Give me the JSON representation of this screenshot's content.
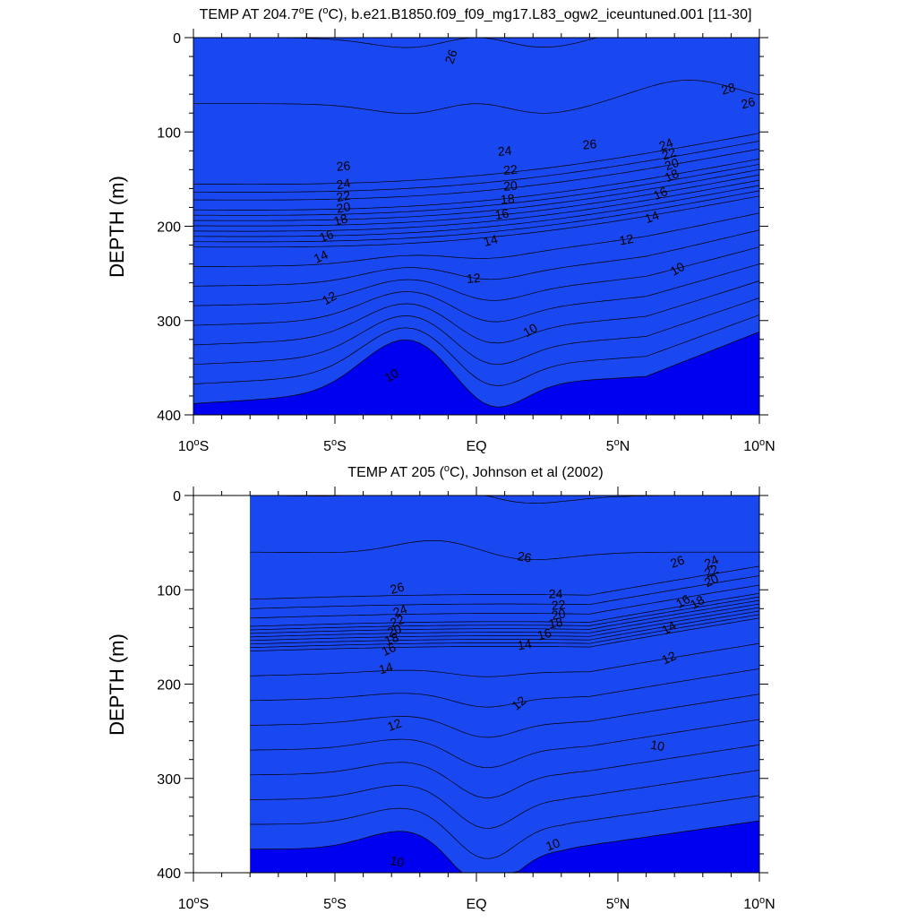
{
  "chart_data": [
    {
      "type": "contour",
      "title_prefix": "TEMP AT 204.7",
      "title_deg": "o",
      "title_mid": "E (",
      "title_unit_deg": "o",
      "title_suffix": "C), b.e21.B1850.f09_f09_mg17.L83_ogw2_iceuntuned.001 [11-30]",
      "ylabel": "DEPTH (m)",
      "xlim": [
        -10,
        10
      ],
      "ylim": [
        0,
        400
      ],
      "yticks": [
        0,
        100,
        200,
        300,
        400
      ],
      "xticks": [
        {
          "value": -10,
          "num": "10",
          "deg": "o",
          "hemi": "S"
        },
        {
          "value": -5,
          "num": "5",
          "deg": "o",
          "hemi": "S"
        },
        {
          "value": 0,
          "num": "EQ",
          "deg": "",
          "hemi": ""
        },
        {
          "value": 5,
          "num": "5",
          "deg": "o",
          "hemi": "N"
        },
        {
          "value": 10,
          "num": "10",
          "deg": "o",
          "hemi": "N"
        }
      ],
      "levels": [
        8,
        9,
        10,
        11,
        12,
        13,
        14,
        15,
        16,
        17,
        18,
        19,
        20,
        21,
        22,
        23,
        24,
        25,
        26,
        27,
        28
      ],
      "colors": [
        "#0000f0",
        "#1a48f0",
        "#1e6ef0",
        "#1f90f5",
        "#00a5ff",
        "#00c8ff",
        "#00e6ff",
        "#20ffdc",
        "#00ff9a",
        "#00e45a",
        "#3ce000",
        "#a0f000",
        "#fff000",
        "#ffd23c",
        "#ffc24c",
        "#ffb03a",
        "#ff9a1e",
        "#ff8a14",
        "#ff6a10",
        "#ff4c0a",
        "#ff2a06",
        "#f50000"
      ],
      "x_start": -10,
      "contour_labels": [
        {
          "text": "26",
          "x": -0.9,
          "d": 20,
          "rot": -70
        },
        {
          "text": "24",
          "x": 1.0,
          "d": 120,
          "rot": -5
        },
        {
          "text": "22",
          "x": 1.2,
          "d": 140,
          "rot": -5
        },
        {
          "text": "20",
          "x": 1.2,
          "d": 157,
          "rot": -5
        },
        {
          "text": "18",
          "x": 1.1,
          "d": 171,
          "rot": -5
        },
        {
          "text": "16",
          "x": 0.9,
          "d": 187,
          "rot": -10
        },
        {
          "text": "14",
          "x": 0.5,
          "d": 215,
          "rot": -15
        },
        {
          "text": "12",
          "x": -0.1,
          "d": 255,
          "rot": -5
        },
        {
          "text": "10",
          "x": 1.9,
          "d": 310,
          "rot": -30
        },
        {
          "text": "10",
          "x": -3.0,
          "d": 358,
          "rot": -30
        },
        {
          "text": "12",
          "x": -5.2,
          "d": 276,
          "rot": -30
        },
        {
          "text": "14",
          "x": -5.5,
          "d": 232,
          "rot": -25
        },
        {
          "text": "16",
          "x": -5.3,
          "d": 210,
          "rot": -20
        },
        {
          "text": "18",
          "x": -4.8,
          "d": 193,
          "rot": -15
        },
        {
          "text": "20",
          "x": -4.7,
          "d": 180,
          "rot": -10
        },
        {
          "text": "22",
          "x": -4.7,
          "d": 168,
          "rot": -10
        },
        {
          "text": "24",
          "x": -4.7,
          "d": 155,
          "rot": -10
        },
        {
          "text": "26",
          "x": -4.7,
          "d": 136,
          "rot": -5
        },
        {
          "text": "26",
          "x": 4.0,
          "d": 113,
          "rot": -5
        },
        {
          "text": "28",
          "x": 8.9,
          "d": 54,
          "rot": -15
        },
        {
          "text": "26",
          "x": 9.6,
          "d": 69,
          "rot": -15
        },
        {
          "text": "24",
          "x": 6.7,
          "d": 113,
          "rot": -20
        },
        {
          "text": "22",
          "x": 6.8,
          "d": 123,
          "rot": -20
        },
        {
          "text": "20",
          "x": 6.9,
          "d": 134,
          "rot": -20
        },
        {
          "text": "18",
          "x": 6.9,
          "d": 146,
          "rot": -25
        },
        {
          "text": "16",
          "x": 6.5,
          "d": 165,
          "rot": -25
        },
        {
          "text": "14",
          "x": 6.2,
          "d": 190,
          "rot": -20
        },
        {
          "text": "12",
          "x": 5.3,
          "d": 214,
          "rot": -10
        },
        {
          "text": "10",
          "x": 7.1,
          "d": 245,
          "rot": -30
        }
      ]
    },
    {
      "type": "contour",
      "title_prefix": "TEMP AT 205 (",
      "title_deg": "o",
      "title_mid": "",
      "title_unit_deg": "",
      "title_suffix": "C), Johnson et al (2002)",
      "ylabel": "DEPTH (m)",
      "xlim": [
        -10,
        10
      ],
      "ylim": [
        0,
        400
      ],
      "yticks": [
        0,
        100,
        200,
        300,
        400
      ],
      "xticks": [
        {
          "value": -10,
          "num": "10",
          "deg": "o",
          "hemi": "S"
        },
        {
          "value": -5,
          "num": "5",
          "deg": "o",
          "hemi": "S"
        },
        {
          "value": 0,
          "num": "EQ",
          "deg": "",
          "hemi": ""
        },
        {
          "value": 5,
          "num": "5",
          "deg": "o",
          "hemi": "N"
        },
        {
          "value": 10,
          "num": "10",
          "deg": "o",
          "hemi": "N"
        }
      ],
      "levels": [
        8,
        9,
        10,
        11,
        12,
        13,
        14,
        15,
        16,
        17,
        18,
        19,
        20,
        21,
        22,
        23,
        24,
        25,
        26,
        27,
        28
      ],
      "colors": [
        "#0000f0",
        "#1a48f0",
        "#1e6ef0",
        "#1f90f5",
        "#00a5ff",
        "#00c8ff",
        "#00e6ff",
        "#20ffdc",
        "#00ff9a",
        "#00e45a",
        "#3ce000",
        "#a0f000",
        "#fff000",
        "#ffd23c",
        "#ffc24c",
        "#ffb03a",
        "#ff9a1e",
        "#ff8a14",
        "#ff6a10",
        "#ff4c0a",
        "#ff2a06",
        "#f50000"
      ],
      "x_start": -8,
      "contour_labels": [
        {
          "text": "26",
          "x": -2.8,
          "d": 98,
          "rot": -15
        },
        {
          "text": "24",
          "x": -2.7,
          "d": 122,
          "rot": -20
        },
        {
          "text": "22",
          "x": -2.8,
          "d": 133,
          "rot": -20
        },
        {
          "text": "20",
          "x": -2.9,
          "d": 143,
          "rot": -20
        },
        {
          "text": "18",
          "x": -3.0,
          "d": 152,
          "rot": -20
        },
        {
          "text": "16",
          "x": -3.1,
          "d": 163,
          "rot": -25
        },
        {
          "text": "14",
          "x": -3.2,
          "d": 183,
          "rot": -15
        },
        {
          "text": "12",
          "x": -2.9,
          "d": 243,
          "rot": -20
        },
        {
          "text": "10",
          "x": -2.8,
          "d": 388,
          "rot": 10
        },
        {
          "text": "26",
          "x": 1.7,
          "d": 65,
          "rot": 10
        },
        {
          "text": "24",
          "x": 2.8,
          "d": 104,
          "rot": 0
        },
        {
          "text": "22",
          "x": 2.9,
          "d": 116,
          "rot": -5
        },
        {
          "text": "20",
          "x": 2.9,
          "d": 126,
          "rot": -10
        },
        {
          "text": "18",
          "x": 2.8,
          "d": 135,
          "rot": -10
        },
        {
          "text": "16",
          "x": 2.4,
          "d": 147,
          "rot": -15
        },
        {
          "text": "14",
          "x": 1.7,
          "d": 158,
          "rot": -10
        },
        {
          "text": "12",
          "x": 1.5,
          "d": 220,
          "rot": -40
        },
        {
          "text": "10",
          "x": 2.7,
          "d": 370,
          "rot": -20
        },
        {
          "text": "26",
          "x": 7.1,
          "d": 70,
          "rot": -20
        },
        {
          "text": "24",
          "x": 8.3,
          "d": 70,
          "rot": -25
        },
        {
          "text": "22",
          "x": 8.3,
          "d": 80,
          "rot": -25
        },
        {
          "text": "20",
          "x": 8.3,
          "d": 90,
          "rot": -25
        },
        {
          "text": "18",
          "x": 7.8,
          "d": 113,
          "rot": -30
        },
        {
          "text": "16",
          "x": 7.3,
          "d": 112,
          "rot": -30
        },
        {
          "text": "14",
          "x": 6.8,
          "d": 140,
          "rot": -30
        },
        {
          "text": "12",
          "x": 6.8,
          "d": 172,
          "rot": -25
        },
        {
          "text": "10",
          "x": 6.4,
          "d": 265,
          "rot": 10
        }
      ]
    }
  ]
}
